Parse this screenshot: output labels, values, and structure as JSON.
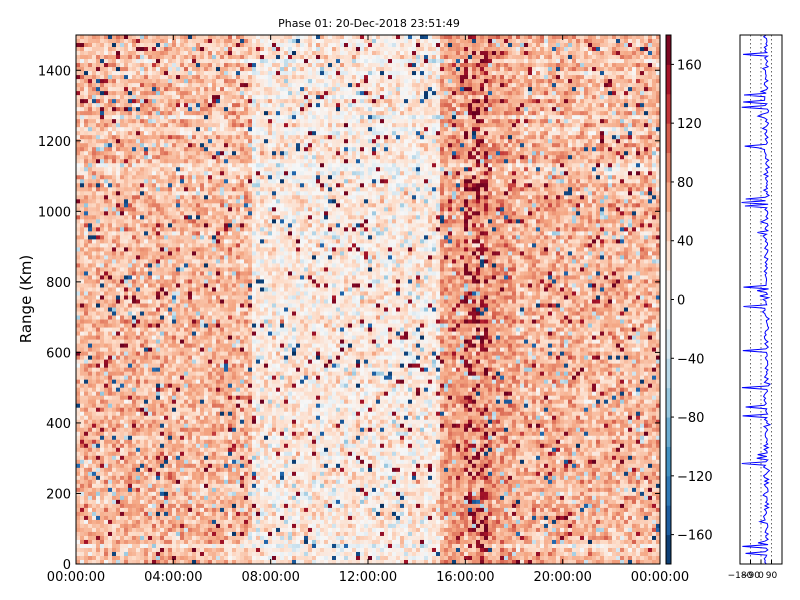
{
  "chart_data": [
    {
      "type": "heatmap",
      "title": "Phase 01: 20-Dec-2018 23:51:49",
      "xlabel": "",
      "ylabel": "Range (Km)",
      "x_tick_labels": [
        "00:00:00",
        "04:00:00",
        "08:00:00",
        "12:00:00",
        "16:00:00",
        "20:00:00",
        "00:00:00"
      ],
      "y_ticks": [
        0,
        200,
        400,
        600,
        800,
        1000,
        1200,
        1400
      ],
      "ylim": [
        0,
        1500
      ],
      "colormap": "RdBu_r",
      "value_range": [
        -180,
        180
      ],
      "colorbar_ticks": [
        -160,
        -120,
        -80,
        -40,
        0,
        40,
        80,
        120,
        160
      ],
      "grid": false,
      "description_values": "phase values, mostly positive (~20–100) with scattered strong red and blue outliers; lighter band around 08:00–14:00, dense dark-red column near 16:00"
    },
    {
      "type": "line",
      "title": "",
      "xlabel": "",
      "ylabel": "",
      "x_tick_labels": [
        "−180",
        "−90",
        "0",
        "90"
      ],
      "xlim": [
        -180,
        180
      ],
      "ylim": [
        0,
        1500
      ],
      "series_color": "#0000ff",
      "baseline_value": 45
    }
  ]
}
